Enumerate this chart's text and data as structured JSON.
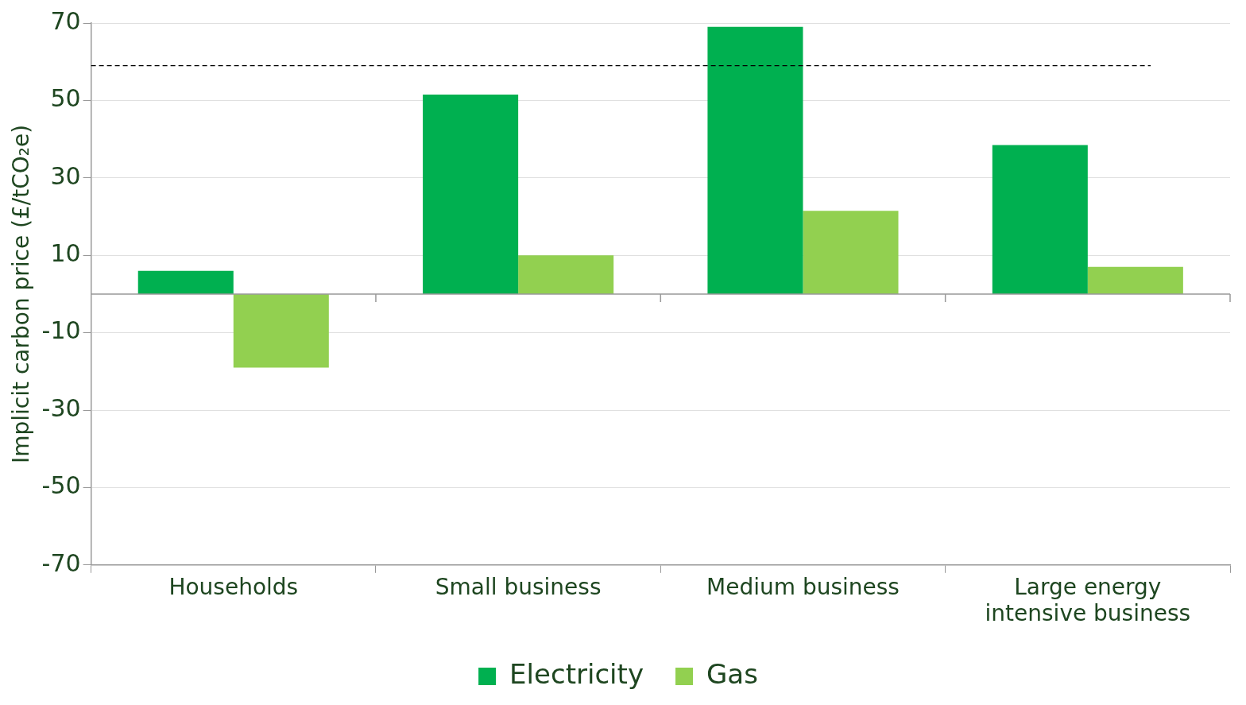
{
  "chart_data": {
    "type": "bar",
    "ylabel": "Implicit carbon price (£/tCO₂e)",
    "categories": [
      "Households",
      "Small business",
      "Medium business",
      "Large energy intensive business"
    ],
    "series": [
      {
        "name": "Electricity",
        "color": "#00b050",
        "values": [
          6,
          51.5,
          69,
          38.5
        ]
      },
      {
        "name": "Gas",
        "color": "#92d050",
        "values": [
          -19,
          10,
          21.5,
          7
        ]
      }
    ],
    "ylim": [
      -70,
      70
    ],
    "yticks": [
      -70,
      -50,
      -30,
      -10,
      10,
      30,
      50,
      70
    ],
    "grid": "y",
    "legend": "bottom",
    "ref_lines": [
      {
        "axis": "y",
        "value": 59,
        "line_style": "dashed",
        "color": "#000000"
      }
    ]
  }
}
